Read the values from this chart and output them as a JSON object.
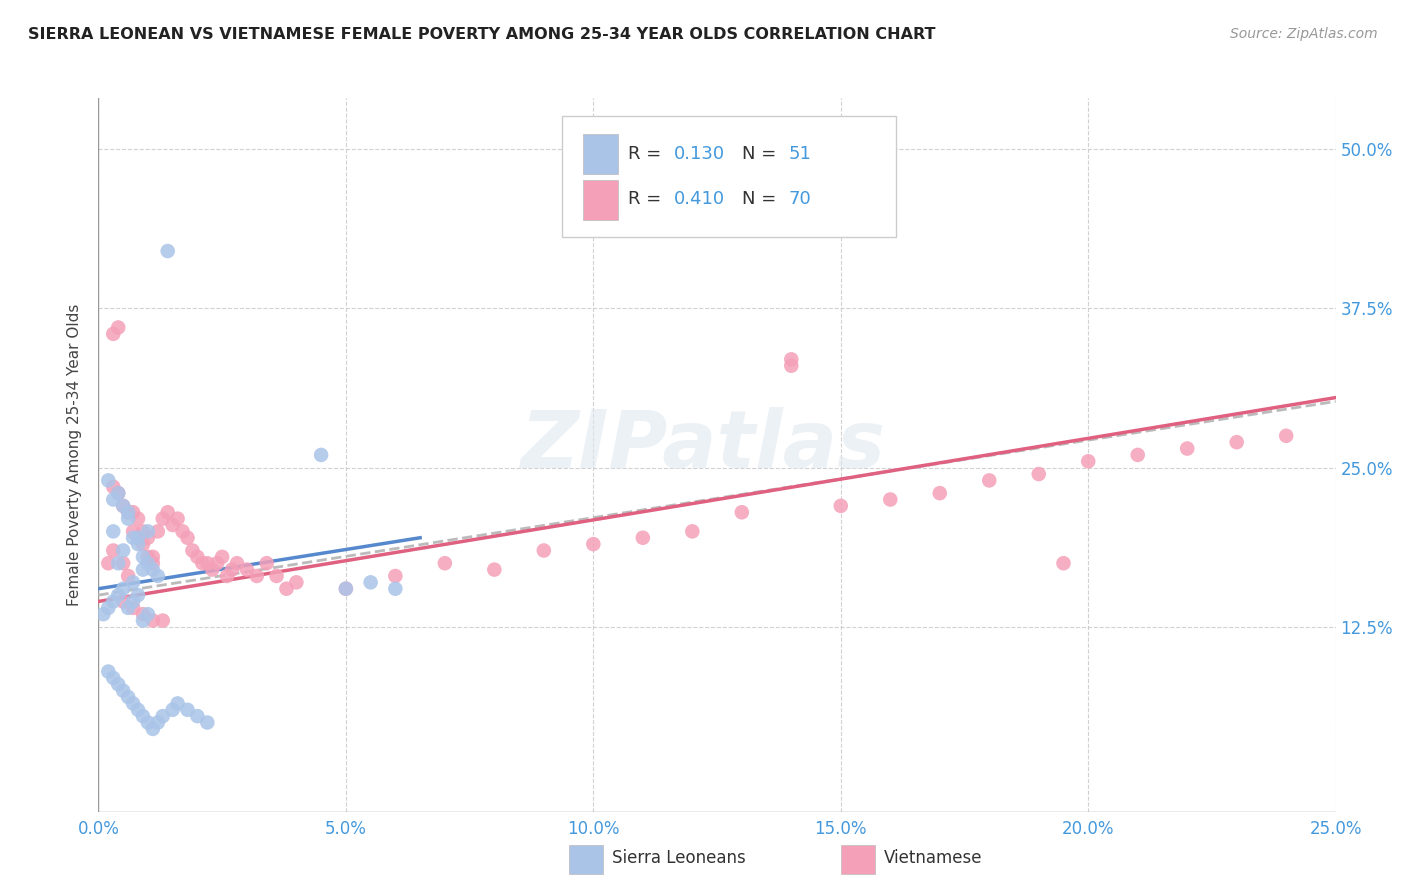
{
  "title": "SIERRA LEONEAN VS VIETNAMESE FEMALE POVERTY AMONG 25-34 YEAR OLDS CORRELATION CHART",
  "source": "Source: ZipAtlas.com",
  "ylabel_label": "Female Poverty Among 25-34 Year Olds",
  "sl_color": "#aac4e8",
  "viet_color": "#f4a0b8",
  "sl_line_color": "#5588cc",
  "viet_line_color": "#e06080",
  "trend_line_color": "#bbbbbb",
  "background_color": "#ffffff",
  "grid_color": "#cccccc",
  "tick_color": "#4499dd",
  "R_sl": 0.13,
  "N_sl": 51,
  "R_viet": 0.41,
  "N_viet": 70,
  "xlim": [
    0.0,
    0.25
  ],
  "ylim": [
    -0.02,
    0.54
  ],
  "sl_x": [
    0.014,
    0.003,
    0.006,
    0.008,
    0.01,
    0.012,
    0.004,
    0.005,
    0.007,
    0.009,
    0.002,
    0.003,
    0.004,
    0.005,
    0.006,
    0.007,
    0.008,
    0.009,
    0.01,
    0.011,
    0.001,
    0.002,
    0.003,
    0.004,
    0.005,
    0.006,
    0.007,
    0.008,
    0.009,
    0.01,
    0.002,
    0.003,
    0.004,
    0.005,
    0.006,
    0.007,
    0.008,
    0.009,
    0.01,
    0.011,
    0.012,
    0.013,
    0.015,
    0.016,
    0.018,
    0.02,
    0.022,
    0.045,
    0.05,
    0.055,
    0.06
  ],
  "sl_y": [
    0.42,
    0.2,
    0.21,
    0.195,
    0.2,
    0.165,
    0.175,
    0.185,
    0.16,
    0.17,
    0.24,
    0.225,
    0.23,
    0.22,
    0.215,
    0.195,
    0.19,
    0.18,
    0.175,
    0.17,
    0.135,
    0.14,
    0.145,
    0.15,
    0.155,
    0.14,
    0.145,
    0.15,
    0.13,
    0.135,
    0.09,
    0.085,
    0.08,
    0.075,
    0.07,
    0.065,
    0.06,
    0.055,
    0.05,
    0.045,
    0.05,
    0.055,
    0.06,
    0.065,
    0.06,
    0.055,
    0.05,
    0.26,
    0.155,
    0.16,
    0.155
  ],
  "viet_x": [
    0.003,
    0.004,
    0.003,
    0.005,
    0.006,
    0.007,
    0.008,
    0.009,
    0.01,
    0.011,
    0.002,
    0.003,
    0.004,
    0.005,
    0.006,
    0.007,
    0.008,
    0.009,
    0.01,
    0.011,
    0.012,
    0.013,
    0.014,
    0.015,
    0.016,
    0.017,
    0.018,
    0.019,
    0.02,
    0.021,
    0.022,
    0.023,
    0.024,
    0.025,
    0.026,
    0.027,
    0.028,
    0.03,
    0.032,
    0.034,
    0.036,
    0.038,
    0.04,
    0.05,
    0.06,
    0.07,
    0.08,
    0.09,
    0.1,
    0.11,
    0.12,
    0.13,
    0.14,
    0.15,
    0.16,
    0.17,
    0.18,
    0.19,
    0.2,
    0.21,
    0.22,
    0.23,
    0.24,
    0.195,
    0.14,
    0.005,
    0.007,
    0.009,
    0.011,
    0.013
  ],
  "viet_y": [
    0.355,
    0.36,
    0.185,
    0.175,
    0.165,
    0.215,
    0.21,
    0.2,
    0.195,
    0.18,
    0.175,
    0.235,
    0.23,
    0.22,
    0.215,
    0.2,
    0.195,
    0.19,
    0.18,
    0.175,
    0.2,
    0.21,
    0.215,
    0.205,
    0.21,
    0.2,
    0.195,
    0.185,
    0.18,
    0.175,
    0.175,
    0.17,
    0.175,
    0.18,
    0.165,
    0.17,
    0.175,
    0.17,
    0.165,
    0.175,
    0.165,
    0.155,
    0.16,
    0.155,
    0.165,
    0.175,
    0.17,
    0.185,
    0.19,
    0.195,
    0.2,
    0.215,
    0.335,
    0.22,
    0.225,
    0.23,
    0.24,
    0.245,
    0.255,
    0.26,
    0.265,
    0.27,
    0.275,
    0.175,
    0.33,
    0.145,
    0.14,
    0.135,
    0.13,
    0.13
  ],
  "sl_trend_x0": 0.0,
  "sl_trend_y0": 0.155,
  "sl_trend_x1": 0.065,
  "sl_trend_y1": 0.195,
  "viet_trend_x0": 0.0,
  "viet_trend_y0": 0.145,
  "viet_trend_x1": 0.25,
  "viet_trend_y1": 0.305
}
